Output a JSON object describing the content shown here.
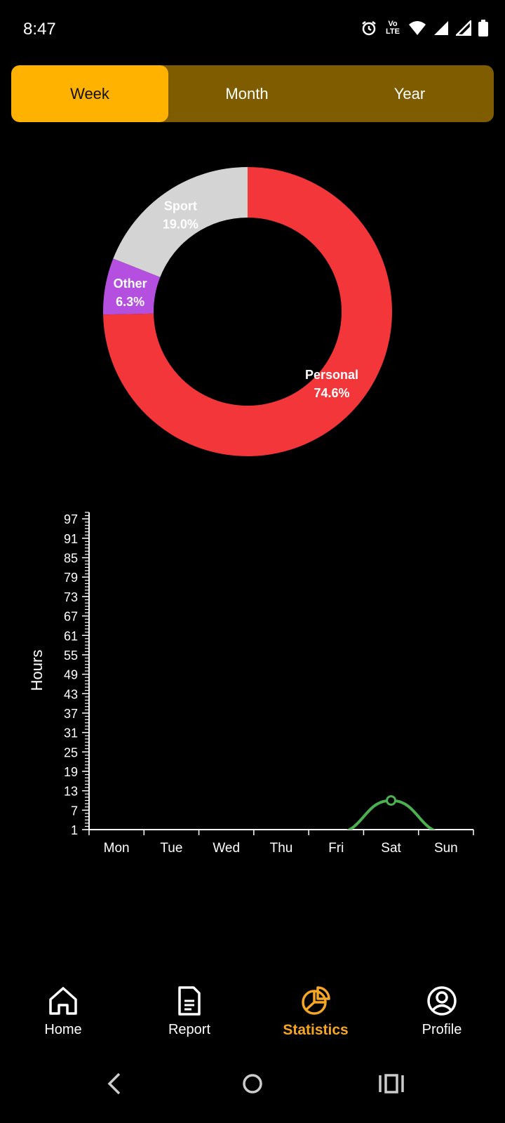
{
  "status": {
    "time": "8:47",
    "icons": [
      "alarm-icon",
      "volte-icon",
      "wifi-icon",
      "signal-icon",
      "signal-icon-2",
      "battery-icon"
    ],
    "volte_label": "Voₒ LTE"
  },
  "tabs": [
    {
      "label": "Week",
      "active": true
    },
    {
      "label": "Month",
      "active": false
    },
    {
      "label": "Year",
      "active": false
    }
  ],
  "colors": {
    "accent": "#ffb300",
    "tab_bg": "#7f5c00",
    "personal": "#f2363a",
    "sport": "#d4d4d4",
    "other": "#b44fe0",
    "line": "#4caf50",
    "nav_active": "#f5a623"
  },
  "donut": {
    "slices": [
      {
        "label": "Personal",
        "percent": "74.6%",
        "value": 74.6,
        "color": "#f2363a"
      },
      {
        "label": "Other",
        "percent": "6.3%",
        "value": 6.3,
        "color": "#b44fe0"
      },
      {
        "label": "Sport",
        "percent": "19.0%",
        "value": 19.0,
        "color": "#d4d4d4"
      }
    ]
  },
  "chart_data": {
    "type": "line",
    "ylabel": "Hours",
    "categories": [
      "Mon",
      "Tue",
      "Wed",
      "Thu",
      "Fri",
      "Sat",
      "Sun"
    ],
    "y_ticks": [
      1,
      7,
      13,
      19,
      25,
      31,
      37,
      43,
      49,
      55,
      61,
      67,
      73,
      79,
      85,
      91,
      97
    ],
    "ylim": [
      1,
      99
    ],
    "series": [
      {
        "values": [
          0,
          0,
          0,
          0,
          0,
          10,
          0
        ],
        "color": "#4caf50"
      }
    ],
    "highlight_point": {
      "category": "Sat",
      "value": 10
    }
  },
  "bottom_nav": [
    {
      "label": "Home",
      "icon": "home-icon",
      "active": false
    },
    {
      "label": "Report",
      "icon": "report-icon",
      "active": false
    },
    {
      "label": "Statistics",
      "icon": "pie-chart-icon",
      "active": true
    },
    {
      "label": "Profile",
      "icon": "profile-icon",
      "active": false
    }
  ],
  "system_nav": [
    "back-icon",
    "home-circle-icon",
    "recents-icon"
  ]
}
